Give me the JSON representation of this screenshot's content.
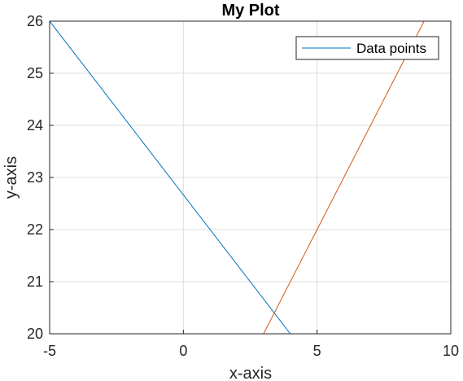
{
  "chart_data": {
    "type": "line",
    "title": "My Plot",
    "xlabel": "x-axis",
    "ylabel": "y-axis",
    "xlim": [
      -5,
      10
    ],
    "ylim": [
      20,
      26
    ],
    "xticks": [
      -5,
      0,
      5,
      10
    ],
    "yticks": [
      20,
      21,
      22,
      23,
      24,
      25,
      26
    ],
    "grid": true,
    "legend_position": "top-right",
    "series": [
      {
        "name": "Data points",
        "color": "#0072BD",
        "x": [
          -5,
          4
        ],
        "y": [
          26,
          20
        ]
      },
      {
        "color": "#D95319",
        "x": [
          3,
          9
        ],
        "y": [
          20,
          26
        ]
      }
    ]
  }
}
